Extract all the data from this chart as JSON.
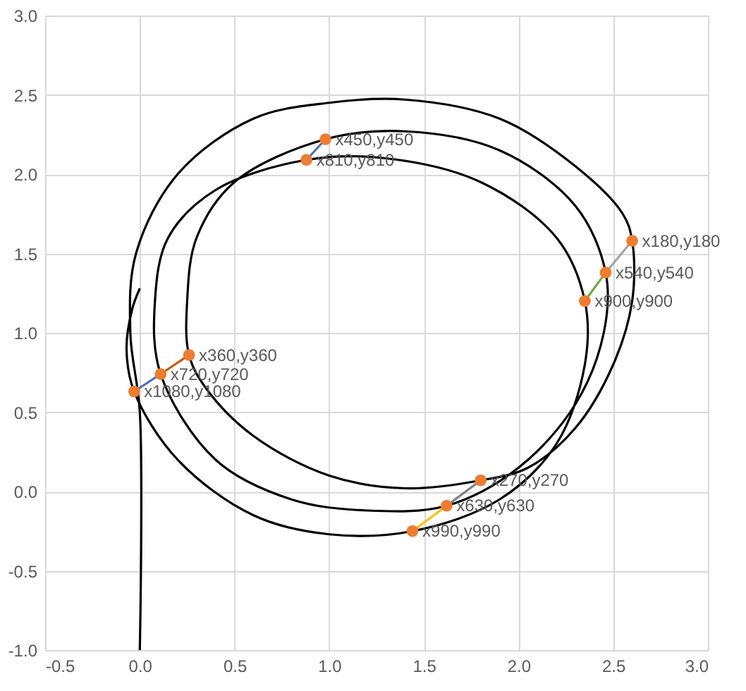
{
  "chart_data": {
    "type": "line",
    "xlim": [
      -0.5,
      3.0
    ],
    "ylim": [
      -1.0,
      3.0
    ],
    "xticks": [
      {
        "value": -0.5,
        "label": "-0.5"
      },
      {
        "value": 0,
        "label": "0.0"
      },
      {
        "value": 0.5,
        "label": "0.5"
      },
      {
        "value": 1,
        "label": "1.0"
      },
      {
        "value": 1.5,
        "label": "1.5"
      },
      {
        "value": 2,
        "label": "2.0"
      },
      {
        "value": 2.5,
        "label": "2.5"
      },
      {
        "value": 3,
        "label": "3.0"
      }
    ],
    "yticks": [
      {
        "value": -1,
        "label": "-1.0"
      },
      {
        "value": -0.5,
        "label": "-0.5"
      },
      {
        "value": 0,
        "label": "0.0"
      },
      {
        "value": 0.5,
        "label": "0.5"
      },
      {
        "value": 1,
        "label": "1.0"
      },
      {
        "value": 1.5,
        "label": "1.5"
      },
      {
        "value": 2,
        "label": "2.0"
      },
      {
        "value": 2.5,
        "label": "2.5"
      },
      {
        "value": 3,
        "label": "3.0"
      }
    ],
    "grid": true,
    "series": [
      {
        "color": "#000000",
        "marker": "none",
        "x": [
          0,
          0,
          -0.05,
          -0.02,
          0.2,
          0.6,
          1.0,
          1.4,
          1.9,
          2.3,
          2.55,
          2.6,
          2.6,
          2.5,
          2.3,
          2.05,
          1.8,
          1.4,
          1.0,
          0.6,
          0.35,
          0.26,
          0.25,
          0.3,
          0.5,
          0.98,
          1.4,
          1.9,
          2.3,
          2.46,
          2.45,
          2.3,
          2.0,
          1.62,
          1.2,
          0.8,
          0.4,
          0.11,
          0.08,
          0.15,
          0.4,
          0.88,
          1.3,
          1.8,
          2.2,
          2.35,
          2.35,
          2.2,
          1.9,
          1.44,
          1.0,
          0.6,
          0.2,
          -0.03,
          -0.07,
          -0.04,
          0.0
        ],
        "values": [
          -1.0,
          0.5,
          1.0,
          1.5,
          2.0,
          2.35,
          2.45,
          2.47,
          2.35,
          2.05,
          1.75,
          1.58,
          1.2,
          0.8,
          0.4,
          0.15,
          0.07,
          0.02,
          0.1,
          0.35,
          0.65,
          0.86,
          1.2,
          1.6,
          1.95,
          2.22,
          2.27,
          2.15,
          1.8,
          1.38,
          1.0,
          0.55,
          0.15,
          -0.09,
          -0.12,
          -0.05,
          0.2,
          0.74,
          1.2,
          1.6,
          1.9,
          2.09,
          2.1,
          1.95,
          1.6,
          1.2,
          0.8,
          0.3,
          -0.05,
          -0.25,
          -0.27,
          -0.15,
          0.2,
          0.63,
          0.9,
          1.15,
          1.28
        ]
      },
      {
        "color": "#4472c4",
        "marker": "none",
        "x": [
          0.98,
          0.88
        ],
        "values": [
          2.22,
          2.09
        ]
      },
      {
        "color": "#a5a5a5",
        "marker": "none",
        "x": [
          2.6,
          2.46
        ],
        "values": [
          1.58,
          1.38
        ]
      },
      {
        "color": "#70ad47",
        "marker": "none",
        "x": [
          2.46,
          2.35
        ],
        "values": [
          1.38,
          1.2
        ]
      },
      {
        "color": "#c55a11",
        "marker": "none",
        "x": [
          0.26,
          0.11
        ],
        "values": [
          0.86,
          0.74
        ]
      },
      {
        "color": "#4472c4",
        "marker": "none",
        "x": [
          0.11,
          -0.03
        ],
        "values": [
          0.74,
          0.63
        ]
      },
      {
        "color": "#7f7f7f",
        "marker": "none",
        "x": [
          1.8,
          1.62
        ],
        "values": [
          0.07,
          -0.09
        ]
      },
      {
        "color": "#ffc000",
        "marker": "none",
        "x": [
          1.62,
          1.44
        ],
        "values": [
          -0.09,
          -0.25
        ]
      },
      {
        "type": "scatter",
        "color": "#ed7d31",
        "marker": "circle",
        "x": [
          2.6,
          1.8,
          0.26,
          0.98,
          2.46,
          1.62,
          0.11,
          0.88,
          2.35,
          1.44,
          -0.03
        ],
        "values": [
          1.58,
          0.07,
          0.86,
          2.22,
          1.38,
          -0.09,
          0.74,
          2.09,
          1.2,
          -0.25,
          0.63
        ],
        "value_labels": [
          "x180,y180",
          "x270,y270",
          "x360,y360",
          "x450,y450",
          "x540,y540",
          "x630,y630",
          "x720,y720",
          "x810,y810",
          "x900,y900",
          "x990,y990",
          "x1080,y1080"
        ]
      }
    ]
  }
}
